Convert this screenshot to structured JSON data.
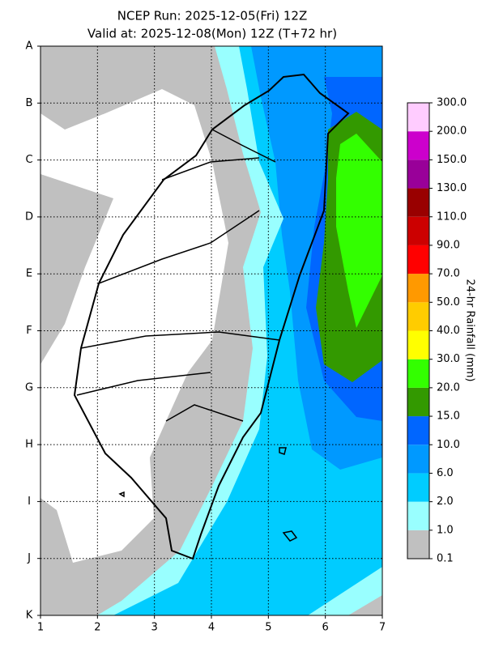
{
  "chart_data": {
    "type": "contour-map",
    "title": "NCEP Run: 2025-12-05(Fri) 12Z",
    "subtitle": "Valid at: 2025-12-08(Mon) 12Z (T+72 hr)",
    "xlim": [
      1,
      7
    ],
    "xticks": [
      1,
      2,
      3,
      4,
      5,
      6,
      7
    ],
    "y_categories": [
      "A",
      "B",
      "C",
      "D",
      "E",
      "F",
      "G",
      "H",
      "I",
      "J",
      "K"
    ],
    "grid": true,
    "colorbar": {
      "label": "24-hr Rainfall (mm)",
      "levels": [
        0.1,
        {
          "value": 1,
          "label": "1.0"
        },
        {
          "value": 2,
          "label": "2.0"
        },
        {
          "value": 6,
          "label": "6.0"
        },
        {
          "value": 10,
          "label": "10.0"
        },
        {
          "value": 15,
          "label": "15.0"
        },
        {
          "value": 20,
          "label": "20.0"
        },
        {
          "value": 30,
          "label": "30.0"
        },
        {
          "value": 40,
          "label": "40.0"
        },
        {
          "value": 50,
          "label": "50.0"
        },
        {
          "value": 70,
          "label": "70.0"
        },
        {
          "value": 90,
          "label": "90.0"
        },
        {
          "value": 110,
          "label": "110.0"
        },
        {
          "value": 130,
          "label": "130.0"
        },
        {
          "value": 150,
          "label": "150.0"
        },
        {
          "value": 200,
          "label": "200.0"
        },
        {
          "value": 300,
          "label": "300.0"
        }
      ],
      "colors": [
        "#c0c0c0",
        "#99ffff",
        "#00ccff",
        "#0099ff",
        "#0066ff",
        "#339900",
        "#33ff00",
        "#ffff00",
        "#ffcc00",
        "#ff9900",
        "#ff0000",
        "#cc0000",
        "#990000",
        "#990099",
        "#cc00cc",
        "#ffccff"
      ]
    }
  }
}
